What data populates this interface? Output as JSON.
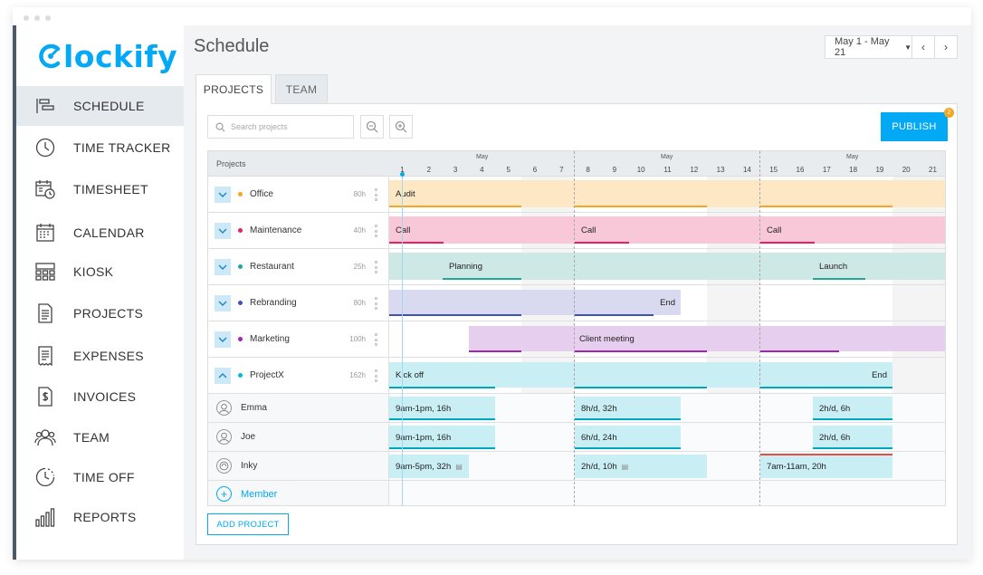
{
  "app": {
    "logo_text": "lockify",
    "brand_color": "#03a9f4"
  },
  "sidebar": {
    "items": [
      {
        "label": "SCHEDULE",
        "icon": "schedule-icon",
        "active": true
      },
      {
        "label": "TIME TRACKER",
        "icon": "clock-icon"
      },
      {
        "label": "TIMESHEET",
        "icon": "timesheet-icon"
      },
      {
        "label": "CALENDAR",
        "icon": "calendar-icon"
      },
      {
        "label": "KIOSK",
        "icon": "kiosk-icon"
      },
      {
        "label": "PROJECTS",
        "icon": "projects-icon"
      },
      {
        "label": "EXPENSES",
        "icon": "expenses-icon"
      },
      {
        "label": "INVOICES",
        "icon": "invoices-icon"
      },
      {
        "label": "TEAM",
        "icon": "team-icon"
      },
      {
        "label": "TIME OFF",
        "icon": "time-off-icon"
      },
      {
        "label": "REPORTS",
        "icon": "reports-icon"
      }
    ]
  },
  "header": {
    "title": "Schedule",
    "date_range": "May 1 - May 21",
    "prev": "‹",
    "next": "›"
  },
  "tabs": [
    {
      "label": "PROJECTS",
      "active": true
    },
    {
      "label": "TEAM",
      "active": false
    }
  ],
  "toolbar": {
    "search_placeholder": "Search projects",
    "publish_label": "PUBLISH",
    "publish_badge": "2"
  },
  "grid": {
    "projects_header": "Projects",
    "month_label": "May",
    "days": [
      "1",
      "2",
      "3",
      "4",
      "5",
      "6",
      "7",
      "8",
      "9",
      "10",
      "11",
      "12",
      "13",
      "14",
      "15",
      "16",
      "17",
      "18",
      "19",
      "20",
      "21"
    ]
  },
  "projects": [
    {
      "name": "Office",
      "hours": "80h",
      "color": "#f5a623",
      "bar_color": "#fde7c4",
      "line_color": "#f5a623",
      "bars": [
        {
          "label": "Audit"
        }
      ]
    },
    {
      "name": "Maintenance",
      "hours": "40h",
      "color": "#e91e63",
      "bar_color": "#f8c7d8",
      "line_color": "#e91e63",
      "bars": [
        {
          "label": "Call"
        },
        {
          "label": "Call"
        },
        {
          "label": "Call"
        }
      ]
    },
    {
      "name": "Restaurant",
      "hours": "25h",
      "color": "#26a69a",
      "bar_color": "#cde8e5",
      "line_color": "#26a69a",
      "bars": [
        {
          "label": "Planning"
        },
        {
          "label": "Launch"
        }
      ]
    },
    {
      "name": "Rebranding",
      "hours": "80h",
      "color": "#3f51b5",
      "bar_color": "#d9d9ef",
      "line_color": "#3f51b5",
      "bars": [
        {
          "label": "End"
        }
      ]
    },
    {
      "name": "Marketing",
      "hours": "100h",
      "color": "#9c27b0",
      "bar_color": "#e6cfee",
      "line_color": "#9c27b0",
      "bars": [
        {
          "label": "Client meeting"
        }
      ]
    },
    {
      "name": "ProjectX",
      "hours": "162h",
      "color": "#00bcd4",
      "bar_color": "#c9eef4",
      "line_color": "#00a6c0",
      "bars": [
        {
          "label": "Kick off"
        },
        {
          "label": "End"
        }
      ]
    }
  ],
  "members": [
    {
      "name": "Emma",
      "allocations": [
        "9am-1pm, 16h",
        "8h/d, 32h",
        "2h/d, 6h"
      ]
    },
    {
      "name": "Joe",
      "allocations": [
        "9am-1pm, 16h",
        "6h/d, 24h",
        "2h/d, 6h"
      ]
    },
    {
      "name": "Inky",
      "allocations": [
        "9am-5pm, 32h",
        "2h/d, 10h",
        "7am-11am, 20h"
      ]
    }
  ],
  "add_member_label": "Member",
  "add_project_label": "ADD PROJECT"
}
